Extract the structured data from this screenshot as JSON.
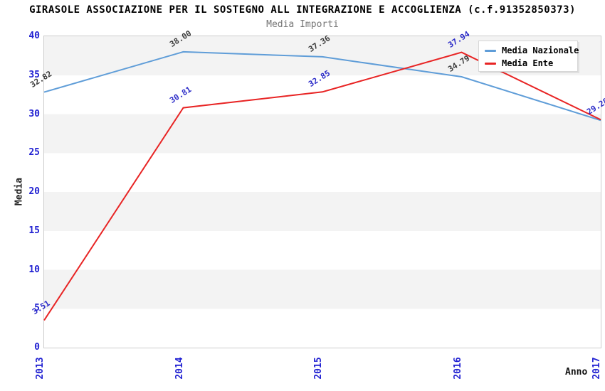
{
  "header": {
    "title": "GIRASOLE ASSOCIAZIONE PER IL SOSTEGNO ALL INTEGRAZIONE E ACCOGLIENZA (c.f.91352850373)",
    "subtitle": "Media Importi"
  },
  "axes": {
    "y_label": "Media",
    "x_label": "Anno",
    "tick_color": "#2222d2"
  },
  "colors": {
    "band_gray": "#f3f3f3",
    "plot_border": "#cccccc",
    "subtitle_gray": "#757575"
  },
  "chart_data": {
    "type": "line",
    "title": "GIRASOLE ASSOCIAZIONE PER IL SOSTEGNO ALL INTEGRAZIONE E ACCOGLIENZA (c.f.91352850373)",
    "subtitle": "Media Importi",
    "xlabel": "Anno",
    "ylabel": "Media",
    "x": [
      "2013",
      "2014",
      "2015",
      "2016",
      "2017"
    ],
    "ylim": [
      0,
      40
    ],
    "ytick_step": 5,
    "grid": "horizontal-bands",
    "legend_position": "top-right",
    "series": [
      {
        "name": "Media Nazionale",
        "color": "#5f9dd8",
        "label_color": "#3a3a3a",
        "values": [
          32.82,
          38.0,
          37.36,
          34.79,
          29.2
        ],
        "point_labels": [
          "32.82",
          "38.00",
          "37.36",
          "34.79",
          null
        ]
      },
      {
        "name": "Media Ente",
        "color": "#e82424",
        "label_color": "#2a2ac8",
        "values": [
          3.51,
          30.81,
          32.85,
          37.94,
          29.28
        ],
        "point_labels": [
          "3.51",
          "30.81",
          "32.85",
          "37.94",
          "29.28"
        ]
      }
    ]
  }
}
